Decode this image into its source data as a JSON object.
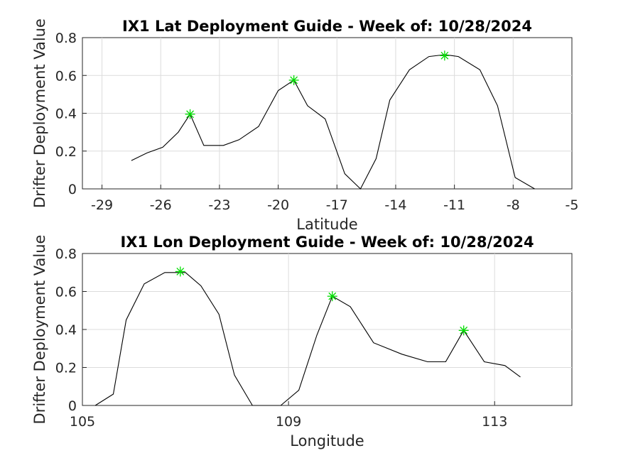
{
  "chart_data": [
    {
      "type": "line",
      "title": "IX1 Lat Deployment Guide - Week of: 10/28/2024",
      "xlabel": "Latitude",
      "ylabel": "Drifter Deployment Value",
      "xlim": [
        -30,
        -5
      ],
      "ylim": [
        0,
        0.8
      ],
      "xticks": [
        -29,
        -26,
        -23,
        -20,
        -17,
        -14,
        -11,
        -8,
        -5
      ],
      "yticks": [
        0,
        0.2,
        0.4,
        0.6,
        0.8
      ],
      "grid": true,
      "series": [
        {
          "x": [
            -27.5,
            -26.7,
            -25.9,
            -25.1,
            -24.5,
            -23.8,
            -22.8,
            -22.0,
            -21.0,
            -20.0,
            -19.2,
            -18.5,
            -17.6,
            -16.6,
            -15.8,
            -15.0,
            -14.3,
            -13.3,
            -12.3,
            -11.5,
            -10.8,
            -9.7,
            -8.8,
            -7.9,
            -6.9
          ],
          "y": [
            0.15,
            0.19,
            0.22,
            0.3,
            0.395,
            0.23,
            0.23,
            0.26,
            0.33,
            0.52,
            0.575,
            0.44,
            0.37,
            0.08,
            0.0,
            0.16,
            0.47,
            0.63,
            0.7,
            0.71,
            0.7,
            0.63,
            0.44,
            0.06,
            0.0
          ]
        }
      ],
      "markers": {
        "style": "asterisk",
        "color": "#00dd00",
        "points": [
          [
            -24.5,
            0.395
          ],
          [
            -19.2,
            0.575
          ],
          [
            -11.5,
            0.705
          ]
        ]
      }
    },
    {
      "type": "line",
      "title": "IX1 Lon Deployment Guide - Week of: 10/28/2024",
      "xlabel": "Longitude",
      "ylabel": "Drifter Deployment Value",
      "xlim": [
        105,
        114.5
      ],
      "ylim": [
        0,
        0.8
      ],
      "xticks": [
        105,
        109,
        113
      ],
      "yticks": [
        0,
        0.2,
        0.4,
        0.6,
        0.8
      ],
      "grid": true,
      "series": [
        {
          "x": [
            105.25,
            105.6,
            105.85,
            106.2,
            106.6,
            107.0,
            107.3,
            107.65,
            107.95,
            108.3,
            108.85,
            109.2,
            109.55,
            109.85,
            110.2,
            110.65,
            111.2,
            111.7,
            112.05,
            112.4,
            112.8,
            113.2,
            113.5
          ],
          "y": [
            0.0,
            0.06,
            0.45,
            0.64,
            0.7,
            0.7,
            0.63,
            0.48,
            0.16,
            0.0,
            0.0,
            0.08,
            0.37,
            0.575,
            0.52,
            0.33,
            0.27,
            0.23,
            0.23,
            0.395,
            0.23,
            0.21,
            0.15
          ]
        }
      ],
      "markers": {
        "style": "asterisk",
        "color": "#00dd00",
        "points": [
          [
            106.9,
            0.705
          ],
          [
            109.85,
            0.575
          ],
          [
            112.4,
            0.395
          ]
        ]
      }
    }
  ]
}
